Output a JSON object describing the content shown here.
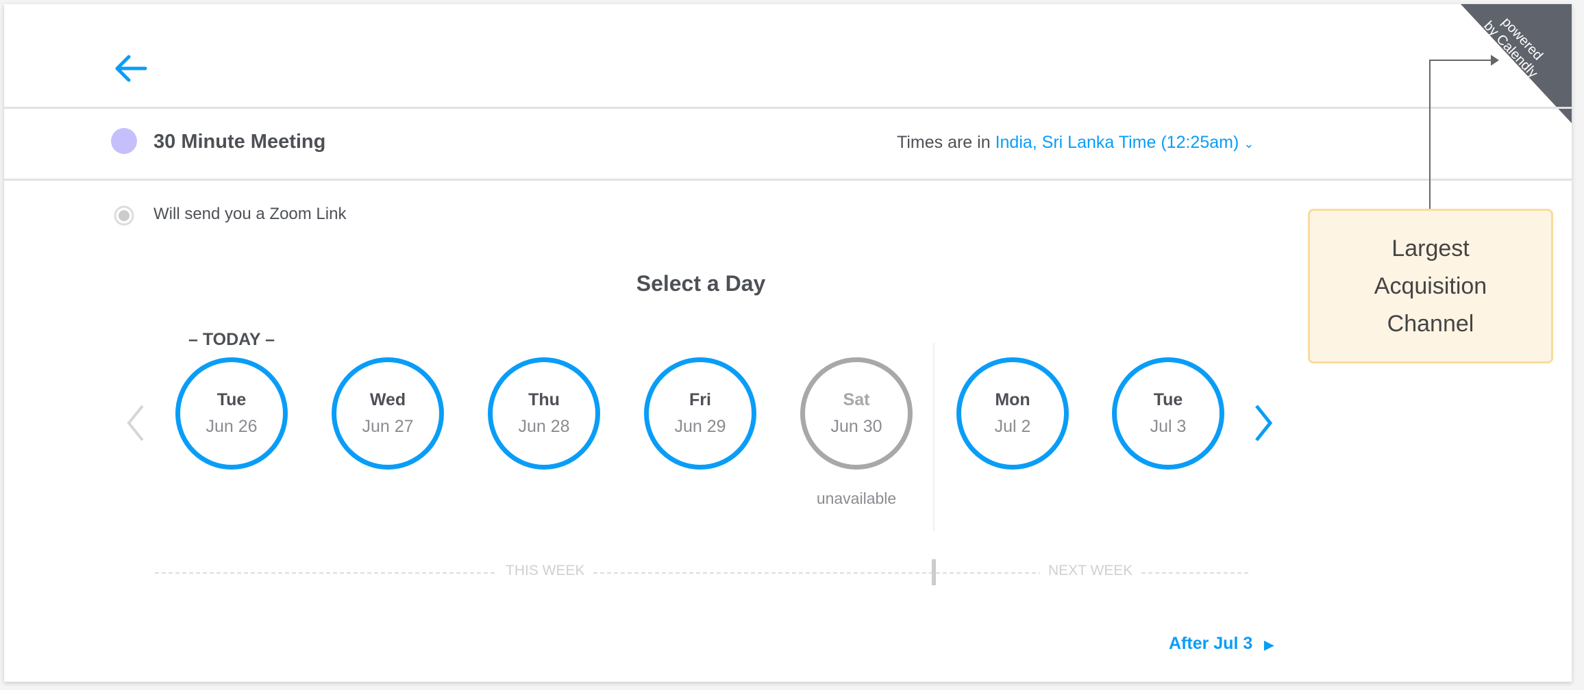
{
  "header": {
    "back_icon": "arrow-left-icon"
  },
  "event": {
    "title": "30 Minute Meeting",
    "dot_color": "#c5c0fb",
    "timezone_prefix": "Times are in",
    "timezone_value": "India, Sri Lanka Time (12:25am)",
    "location": "Will send you a Zoom Link"
  },
  "picker": {
    "heading": "Select a Day",
    "today_label": "– TODAY –",
    "unavailable_label": "unavailable",
    "days": [
      {
        "name": "Tue",
        "date": "Jun 26",
        "available": true
      },
      {
        "name": "Wed",
        "date": "Jun 27",
        "available": true
      },
      {
        "name": "Thu",
        "date": "Jun 28",
        "available": true
      },
      {
        "name": "Fri",
        "date": "Jun 29",
        "available": true
      },
      {
        "name": "Sat",
        "date": "Jun 30",
        "available": false
      },
      {
        "name": "Mon",
        "date": "Jul 2",
        "available": true
      },
      {
        "name": "Tue",
        "date": "Jul 3",
        "available": true
      }
    ],
    "this_week": "THIS WEEK",
    "next_week": "NEXT WEEK",
    "after_link": "After Jul 3"
  },
  "ribbon": {
    "text_line1": "powered",
    "text_line2": "by Calendly"
  },
  "annotation": {
    "text": "Largest Acquisition Channel"
  },
  "colors": {
    "accent": "#0a9df7",
    "unavailable": "#a8a8aa",
    "annotation_bg": "#fef4e4",
    "annotation_border": "#f9dc9c"
  }
}
